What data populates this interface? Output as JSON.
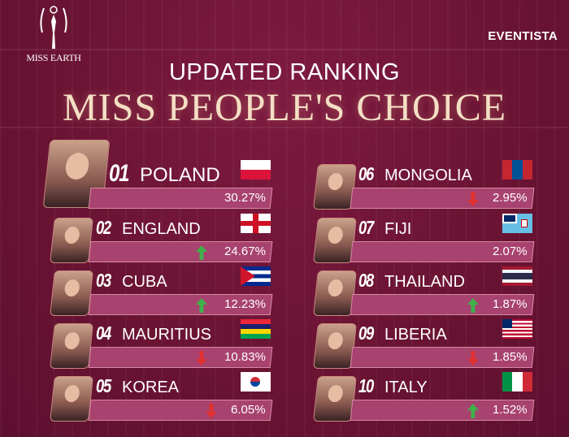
{
  "header": {
    "logo_text": "MISS EARTH",
    "brand": "EVENTISTA",
    "subtitle": "UPDATED RANKING",
    "title": "MISS PEOPLE'S CHOICE"
  },
  "colors": {
    "up": "#3fb04a",
    "down": "#e03030",
    "bar": "#a8426f",
    "background": "#6b1434"
  },
  "ranking": [
    {
      "rank": "01",
      "country": "POLAND",
      "percent": "30.27%",
      "trend": "none",
      "flag": "poland"
    },
    {
      "rank": "02",
      "country": "ENGLAND",
      "percent": "24.67%",
      "trend": "up",
      "flag": "england"
    },
    {
      "rank": "03",
      "country": "CUBA",
      "percent": "12.23%",
      "trend": "up",
      "flag": "cuba"
    },
    {
      "rank": "04",
      "country": "MAURITIUS",
      "percent": "10.83%",
      "trend": "down",
      "flag": "mauritius"
    },
    {
      "rank": "05",
      "country": "KOREA",
      "percent": "6.05%",
      "trend": "down",
      "flag": "korea"
    },
    {
      "rank": "06",
      "country": "MONGOLIA",
      "percent": "2.95%",
      "trend": "down",
      "flag": "mongolia"
    },
    {
      "rank": "07",
      "country": "FIJI",
      "percent": "2.07%",
      "trend": "none",
      "flag": "fiji"
    },
    {
      "rank": "08",
      "country": "THAILAND",
      "percent": "1.87%",
      "trend": "up",
      "flag": "thailand"
    },
    {
      "rank": "09",
      "country": "LIBERIA",
      "percent": "1.85%",
      "trend": "down",
      "flag": "liberia"
    },
    {
      "rank": "10",
      "country": "ITALY",
      "percent": "1.52%",
      "trend": "up",
      "flag": "italy"
    }
  ]
}
